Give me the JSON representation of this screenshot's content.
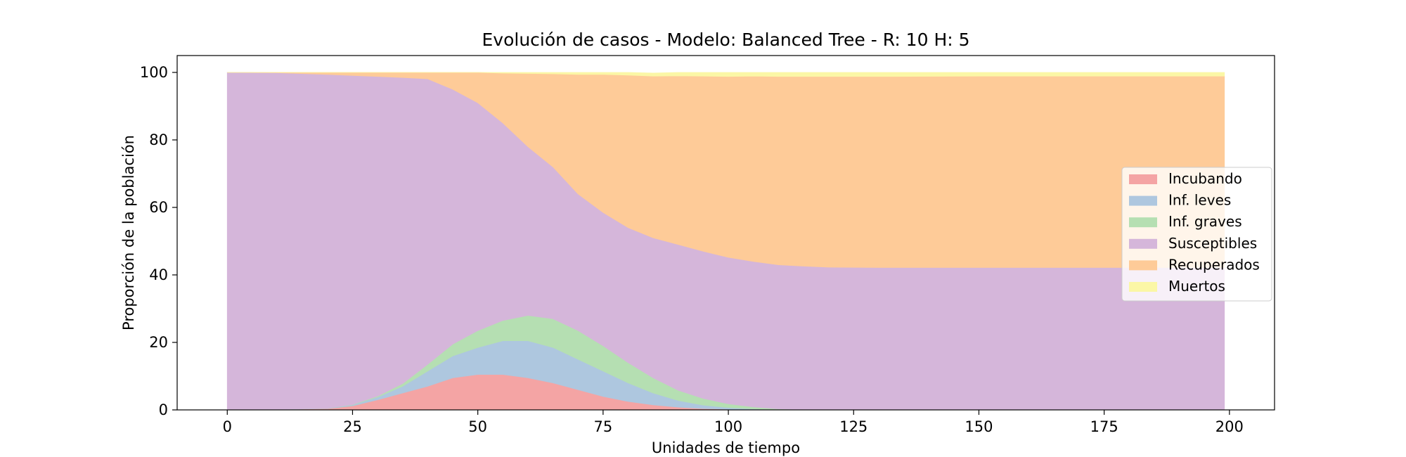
{
  "chart_data": {
    "type": "area",
    "stacked": true,
    "title": "Evolución de casos - Modelo: Balanced Tree - R: 10 H: 5",
    "xlabel": "Unidades de tiempo",
    "ylabel": "Proporción de la población",
    "xlim": [
      -10,
      209
    ],
    "ylim": [
      0,
      105
    ],
    "xticks": [
      0,
      25,
      50,
      75,
      100,
      125,
      150,
      175,
      200
    ],
    "yticks": [
      0,
      20,
      40,
      60,
      80,
      100
    ],
    "legend_position": "center-right",
    "grid": false,
    "x": [
      0,
      10,
      20,
      25,
      30,
      35,
      40,
      45,
      50,
      55,
      60,
      65,
      70,
      75,
      80,
      85,
      90,
      95,
      100,
      105,
      110,
      115,
      120,
      130,
      150,
      175,
      199
    ],
    "series": [
      {
        "name": "Incubando",
        "color": "#f4a4a4",
        "values": [
          0,
          0.1,
          0.4,
          1.2,
          3.0,
          5.0,
          7.0,
          9.5,
          10.5,
          10.5,
          9.5,
          8.0,
          6.0,
          4.0,
          2.5,
          1.5,
          0.8,
          0.4,
          0.2,
          0.1,
          0,
          0,
          0,
          0,
          0,
          0,
          0
        ]
      },
      {
        "name": "Inf. leves",
        "color": "#aec7df",
        "values": [
          0,
          0,
          0.1,
          0.3,
          0.8,
          2.0,
          4.5,
          6.5,
          8.0,
          10.0,
          11.0,
          10.5,
          9.0,
          7.5,
          5.5,
          3.5,
          2.0,
          1.0,
          0.5,
          0.2,
          0.1,
          0,
          0,
          0,
          0,
          0,
          0
        ]
      },
      {
        "name": "Inf. graves",
        "color": "#b5dfb2",
        "values": [
          0,
          0,
          0,
          0.1,
          0.3,
          0.8,
          2.0,
          3.5,
          5.0,
          6.0,
          7.5,
          8.5,
          8.5,
          7.5,
          6.0,
          4.5,
          3.0,
          2.0,
          1.1,
          0.6,
          0.2,
          0.1,
          0,
          0,
          0,
          0,
          0
        ]
      },
      {
        "name": "Susceptibles",
        "color": "#d5b6da",
        "values": [
          100,
          99.8,
          98.9,
          97.5,
          94.7,
          90.7,
          84.6,
          75.5,
          67.5,
          58.5,
          50.0,
          45.0,
          40.5,
          39.5,
          40.0,
          41.5,
          43.2,
          43.6,
          43.4,
          43.1,
          42.7,
          42.5,
          42.3,
          42.2,
          42.2,
          42.2,
          42.2
        ]
      },
      {
        "name": "Recuperados",
        "color": "#fecb98",
        "values": [
          0,
          0.1,
          0.6,
          0.9,
          1.2,
          1.5,
          1.9,
          5.0,
          9.0,
          14.8,
          21.7,
          27.6,
          35.4,
          40.9,
          45.2,
          47.9,
          50.0,
          51.9,
          53.6,
          54.9,
          55.8,
          56.2,
          56.5,
          56.6,
          56.7,
          56.7,
          56.7
        ]
      },
      {
        "name": "Muertos",
        "color": "#fbf7a6",
        "values": [
          0,
          0,
          0,
          0,
          0,
          0,
          0,
          0,
          0,
          0.2,
          0.3,
          0.4,
          0.6,
          0.6,
          0.8,
          0.9,
          1.0,
          1.1,
          1.2,
          1.1,
          1.2,
          1.2,
          1.2,
          1.2,
          1.1,
          1.1,
          1.1
        ]
      }
    ]
  }
}
